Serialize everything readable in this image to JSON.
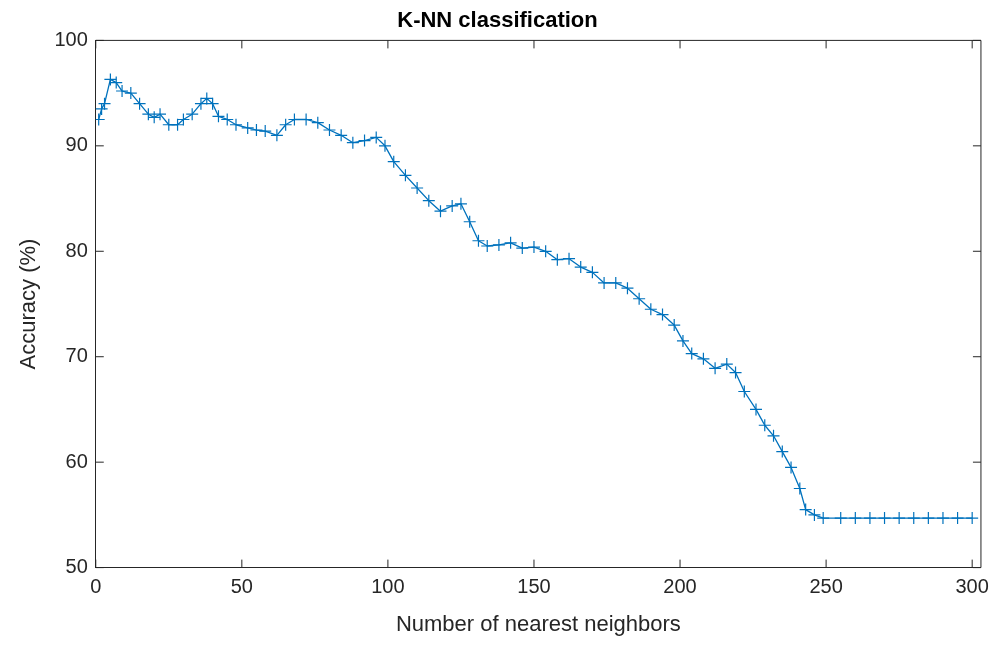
{
  "chart_data": {
    "type": "line",
    "title": "K-NN classification",
    "xlabel": "Number of nearest neighbors",
    "ylabel": "Accuracy (%)",
    "x": [
      1,
      2,
      3,
      5,
      7,
      9,
      12,
      15,
      18,
      20,
      22,
      25,
      28,
      30,
      33,
      36,
      38,
      40,
      42,
      45,
      48,
      52,
      55,
      58,
      62,
      65,
      68,
      72,
      76,
      80,
      84,
      88,
      92,
      96,
      99,
      102,
      106,
      110,
      114,
      118,
      122,
      125,
      128,
      131,
      134,
      138,
      142,
      146,
      150,
      154,
      158,
      162,
      166,
      170,
      174,
      178,
      182,
      186,
      190,
      194,
      198,
      201,
      204,
      208,
      212,
      216,
      219,
      222,
      226,
      229,
      232,
      235,
      238,
      241,
      243,
      246,
      249,
      255,
      260,
      265,
      270,
      275,
      280,
      285,
      290,
      295,
      300
    ],
    "series": [
      {
        "color": "#0072bd",
        "values": [
          92.5,
          93.5,
          94,
          96.3,
          96,
          95.2,
          95,
          94,
          93,
          92.7,
          93,
          92,
          92,
          92.5,
          93,
          94,
          94.5,
          94,
          92.8,
          92.5,
          92,
          91.7,
          91.5,
          91.4,
          91,
          92,
          92.5,
          92.5,
          92.2,
          91.5,
          91,
          90.3,
          90.5,
          90.8,
          90,
          88.5,
          87.2,
          86,
          84.8,
          83.8,
          84.3,
          84.5,
          82.8,
          81,
          80.5,
          80.6,
          80.8,
          80.3,
          80.4,
          80,
          79.2,
          79.3,
          78.5,
          78,
          77,
          77,
          76.5,
          75.5,
          74.5,
          74,
          73,
          71.5,
          70.3,
          69.8,
          68.9,
          69.3,
          68.5,
          66.7,
          65,
          63.5,
          62.5,
          61,
          59.5,
          57.5,
          55.5,
          55,
          54.7,
          54.7,
          54.7,
          54.7,
          54.7,
          54.7,
          54.7,
          54.7,
          54.7,
          54.7,
          54.7
        ]
      }
    ],
    "xlim": [
      0,
      303
    ],
    "xticks": [
      0,
      50,
      100,
      150,
      200,
      250,
      300
    ],
    "ylim": [
      50,
      100
    ],
    "yticks": [
      50,
      60,
      70,
      80,
      90,
      100
    ],
    "grid": false,
    "legend": false,
    "marker": "cross",
    "line_style": "solid"
  }
}
